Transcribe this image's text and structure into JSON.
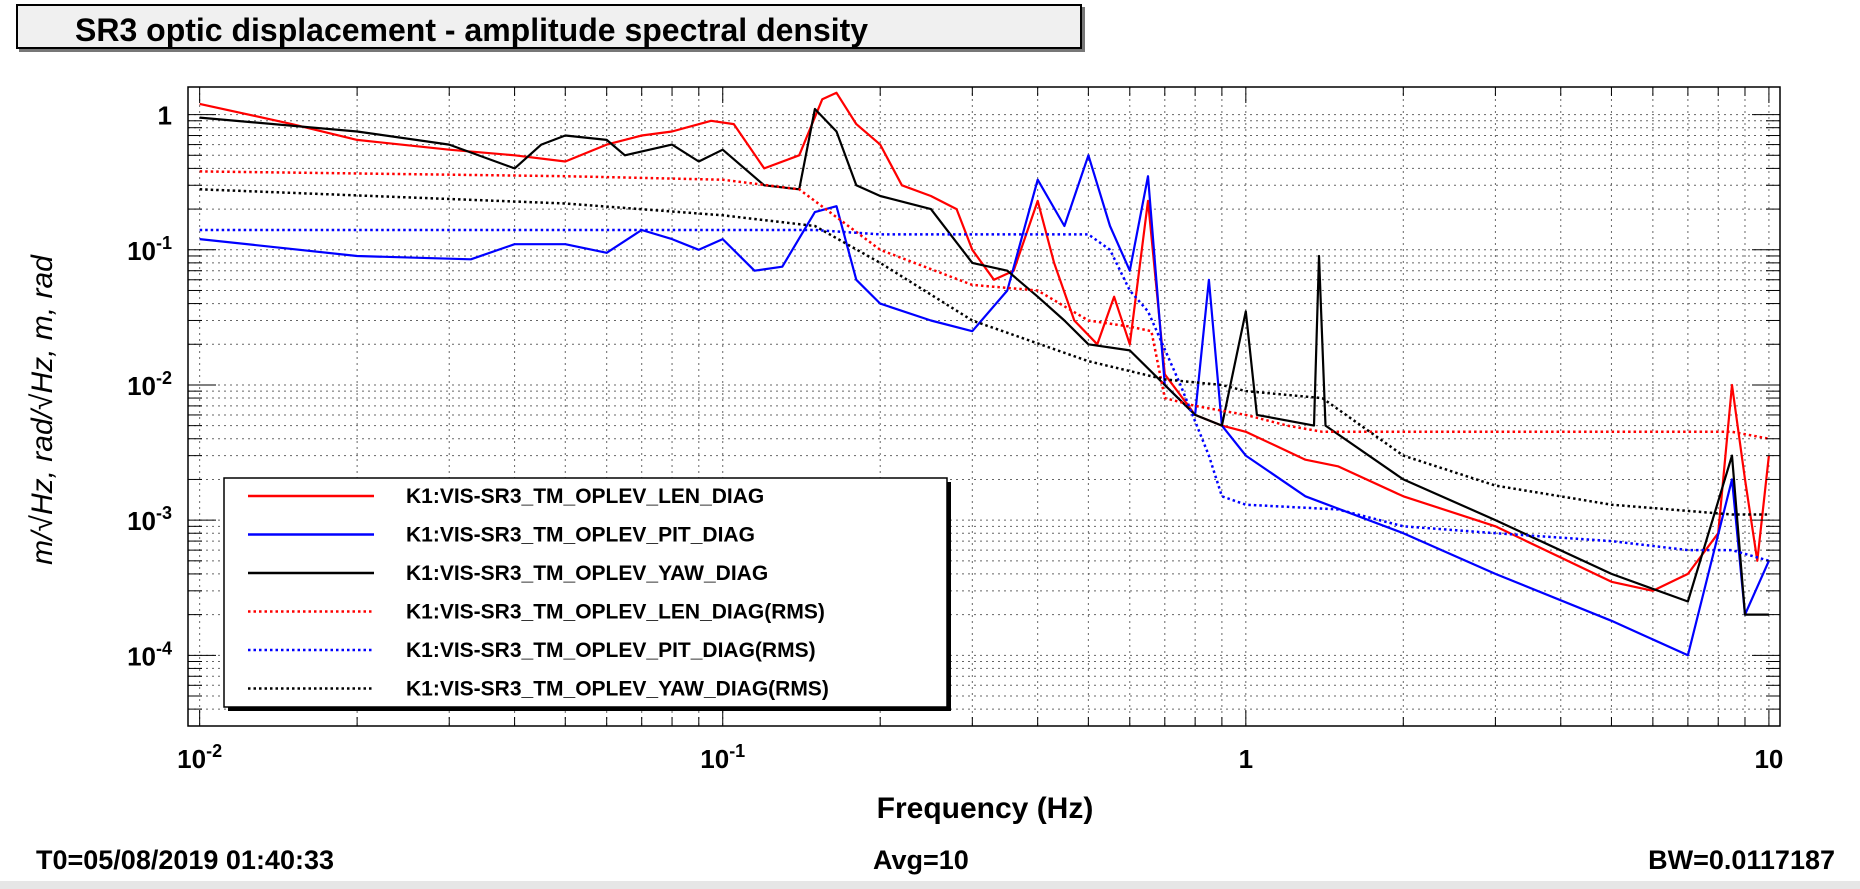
{
  "window": {
    "title": "SR3 optic displacement - amplitude spectral density"
  },
  "footer": {
    "t0": "T0=05/08/2019 01:40:33",
    "avg": "Avg=10",
    "bw": "BW=0.0117187"
  },
  "chart_data": {
    "type": "line",
    "title": "SR3 optic displacement - amplitude spectral density",
    "xlabel": "Frequency (Hz)",
    "ylabel": "m/√Hz, rad/√Hz, m, rad",
    "xscale": "log",
    "yscale": "log",
    "xlim": [
      0.0095,
      10.5
    ],
    "ylim": [
      3e-05,
      1.6
    ],
    "x_ticks": [
      {
        "value": 0.01,
        "base": "10",
        "exp": "-2"
      },
      {
        "value": 0.1,
        "base": "10",
        "exp": "-1"
      },
      {
        "value": 1,
        "base": "1",
        "exp": ""
      },
      {
        "value": 10,
        "base": "10",
        "exp": ""
      }
    ],
    "y_ticks": [
      {
        "value": 1,
        "base": "1",
        "exp": ""
      },
      {
        "value": 0.1,
        "base": "10",
        "exp": "-1"
      },
      {
        "value": 0.01,
        "base": "10",
        "exp": "-2"
      },
      {
        "value": 0.001,
        "base": "10",
        "exp": "-3"
      },
      {
        "value": 0.0001,
        "base": "10",
        "exp": "-4"
      }
    ],
    "grid": true,
    "legend_position": "lower-left",
    "series": [
      {
        "name": "K1:VIS-SR3_TM_OPLEV_LEN_DIAG",
        "color": "#ff0000",
        "style": "solid",
        "points": [
          [
            0.01,
            1.2
          ],
          [
            0.015,
            0.85
          ],
          [
            0.02,
            0.65
          ],
          [
            0.03,
            0.55
          ],
          [
            0.04,
            0.5
          ],
          [
            0.05,
            0.45
          ],
          [
            0.06,
            0.6
          ],
          [
            0.07,
            0.7
          ],
          [
            0.08,
            0.75
          ],
          [
            0.095,
            0.9
          ],
          [
            0.105,
            0.85
          ],
          [
            0.12,
            0.4
          ],
          [
            0.14,
            0.5
          ],
          [
            0.155,
            1.3
          ],
          [
            0.165,
            1.45
          ],
          [
            0.18,
            0.85
          ],
          [
            0.2,
            0.6
          ],
          [
            0.22,
            0.3
          ],
          [
            0.25,
            0.25
          ],
          [
            0.28,
            0.2
          ],
          [
            0.3,
            0.1
          ],
          [
            0.33,
            0.06
          ],
          [
            0.36,
            0.07
          ],
          [
            0.4,
            0.23
          ],
          [
            0.43,
            0.08
          ],
          [
            0.47,
            0.03
          ],
          [
            0.52,
            0.02
          ],
          [
            0.56,
            0.045
          ],
          [
            0.6,
            0.02
          ],
          [
            0.65,
            0.23
          ],
          [
            0.7,
            0.012
          ],
          [
            0.8,
            0.006
          ],
          [
            0.9,
            0.005
          ],
          [
            1.0,
            0.0045
          ],
          [
            1.15,
            0.0035
          ],
          [
            1.3,
            0.0028
          ],
          [
            1.5,
            0.0025
          ],
          [
            2.0,
            0.0015
          ],
          [
            3.0,
            0.0009
          ],
          [
            5.0,
            0.00035
          ],
          [
            6.0,
            0.0003
          ],
          [
            7.0,
            0.0004
          ],
          [
            8.0,
            0.0008
          ],
          [
            8.5,
            0.01
          ],
          [
            9.0,
            0.002
          ],
          [
            9.5,
            0.0005
          ],
          [
            10.0,
            0.003
          ]
        ]
      },
      {
        "name": "K1:VIS-SR3_TM_OPLEV_PIT_DIAG",
        "color": "#0000ff",
        "style": "solid",
        "points": [
          [
            0.01,
            0.12
          ],
          [
            0.02,
            0.09
          ],
          [
            0.033,
            0.085
          ],
          [
            0.04,
            0.11
          ],
          [
            0.05,
            0.11
          ],
          [
            0.06,
            0.095
          ],
          [
            0.07,
            0.14
          ],
          [
            0.08,
            0.12
          ],
          [
            0.09,
            0.1
          ],
          [
            0.1,
            0.12
          ],
          [
            0.115,
            0.07
          ],
          [
            0.13,
            0.075
          ],
          [
            0.15,
            0.19
          ],
          [
            0.165,
            0.21
          ],
          [
            0.18,
            0.06
          ],
          [
            0.2,
            0.04
          ],
          [
            0.25,
            0.03
          ],
          [
            0.3,
            0.025
          ],
          [
            0.35,
            0.05
          ],
          [
            0.4,
            0.33
          ],
          [
            0.45,
            0.15
          ],
          [
            0.5,
            0.5
          ],
          [
            0.55,
            0.15
          ],
          [
            0.6,
            0.07
          ],
          [
            0.65,
            0.35
          ],
          [
            0.7,
            0.01
          ],
          [
            0.8,
            0.006
          ],
          [
            0.85,
            0.06
          ],
          [
            0.9,
            0.005
          ],
          [
            1.0,
            0.003
          ],
          [
            1.3,
            0.0015
          ],
          [
            2.0,
            0.0008
          ],
          [
            3.0,
            0.0004
          ],
          [
            5.0,
            0.00018
          ],
          [
            7.0,
            0.0001
          ],
          [
            8.5,
            0.002
          ],
          [
            9.0,
            0.0002
          ],
          [
            10.0,
            0.0005
          ]
        ]
      },
      {
        "name": "K1:VIS-SR3_TM_OPLEV_YAW_DIAG",
        "color": "#000000",
        "style": "solid",
        "points": [
          [
            0.01,
            0.95
          ],
          [
            0.02,
            0.75
          ],
          [
            0.03,
            0.6
          ],
          [
            0.04,
            0.4
          ],
          [
            0.045,
            0.6
          ],
          [
            0.05,
            0.7
          ],
          [
            0.06,
            0.65
          ],
          [
            0.065,
            0.5
          ],
          [
            0.08,
            0.6
          ],
          [
            0.09,
            0.45
          ],
          [
            0.1,
            0.55
          ],
          [
            0.12,
            0.3
          ],
          [
            0.14,
            0.28
          ],
          [
            0.15,
            1.1
          ],
          [
            0.165,
            0.75
          ],
          [
            0.18,
            0.3
          ],
          [
            0.2,
            0.25
          ],
          [
            0.25,
            0.2
          ],
          [
            0.3,
            0.08
          ],
          [
            0.35,
            0.07
          ],
          [
            0.4,
            0.045
          ],
          [
            0.45,
            0.03
          ],
          [
            0.5,
            0.02
          ],
          [
            0.6,
            0.018
          ],
          [
            0.7,
            0.01
          ],
          [
            0.8,
            0.006
          ],
          [
            0.9,
            0.005
          ],
          [
            1.0,
            0.035
          ],
          [
            1.05,
            0.006
          ],
          [
            1.35,
            0.005
          ],
          [
            1.38,
            0.09
          ],
          [
            1.42,
            0.005
          ],
          [
            2.0,
            0.002
          ],
          [
            3.0,
            0.001
          ],
          [
            5.0,
            0.0004
          ],
          [
            7.0,
            0.00025
          ],
          [
            8.5,
            0.003
          ],
          [
            9.0,
            0.0002
          ],
          [
            10.0,
            0.0002
          ]
        ]
      },
      {
        "name": "K1:VIS-SR3_TM_OPLEV_LEN_DIAG(RMS)",
        "color": "#ff0000",
        "style": "dotted",
        "points": [
          [
            0.01,
            0.38
          ],
          [
            0.05,
            0.35
          ],
          [
            0.1,
            0.33
          ],
          [
            0.14,
            0.28
          ],
          [
            0.2,
            0.1
          ],
          [
            0.3,
            0.055
          ],
          [
            0.4,
            0.05
          ],
          [
            0.5,
            0.03
          ],
          [
            0.6,
            0.027
          ],
          [
            0.66,
            0.025
          ],
          [
            0.7,
            0.008
          ],
          [
            0.8,
            0.007
          ],
          [
            1.0,
            0.006
          ],
          [
            1.2,
            0.005
          ],
          [
            1.4,
            0.0045
          ],
          [
            3.0,
            0.0045
          ],
          [
            8.5,
            0.0045
          ],
          [
            10.0,
            0.004
          ]
        ]
      },
      {
        "name": "K1:VIS-SR3_TM_OPLEV_PIT_DIAG(RMS)",
        "color": "#0000ff",
        "style": "dotted",
        "points": [
          [
            0.01,
            0.14
          ],
          [
            0.1,
            0.14
          ],
          [
            0.15,
            0.14
          ],
          [
            0.2,
            0.13
          ],
          [
            0.5,
            0.13
          ],
          [
            0.55,
            0.1
          ],
          [
            0.6,
            0.05
          ],
          [
            0.65,
            0.035
          ],
          [
            0.75,
            0.01
          ],
          [
            0.85,
            0.003
          ],
          [
            0.9,
            0.0015
          ],
          [
            1.0,
            0.0013
          ],
          [
            1.5,
            0.0012
          ],
          [
            2.0,
            0.0009
          ],
          [
            3.0,
            0.0008
          ],
          [
            5.0,
            0.0007
          ],
          [
            7.0,
            0.0006
          ],
          [
            8.5,
            0.0006
          ],
          [
            10.0,
            0.0005
          ]
        ]
      },
      {
        "name": "K1:VIS-SR3_TM_OPLEV_YAW_DIAG(RMS)",
        "color": "#000000",
        "style": "dotted",
        "points": [
          [
            0.01,
            0.28
          ],
          [
            0.05,
            0.22
          ],
          [
            0.1,
            0.18
          ],
          [
            0.15,
            0.15
          ],
          [
            0.2,
            0.08
          ],
          [
            0.3,
            0.03
          ],
          [
            0.5,
            0.015
          ],
          [
            0.7,
            0.011
          ],
          [
            0.9,
            0.01
          ],
          [
            1.0,
            0.009
          ],
          [
            1.4,
            0.008
          ],
          [
            2.0,
            0.003
          ],
          [
            3.0,
            0.0018
          ],
          [
            5.0,
            0.0013
          ],
          [
            8.5,
            0.0011
          ],
          [
            10.0,
            0.0011
          ]
        ]
      }
    ]
  }
}
